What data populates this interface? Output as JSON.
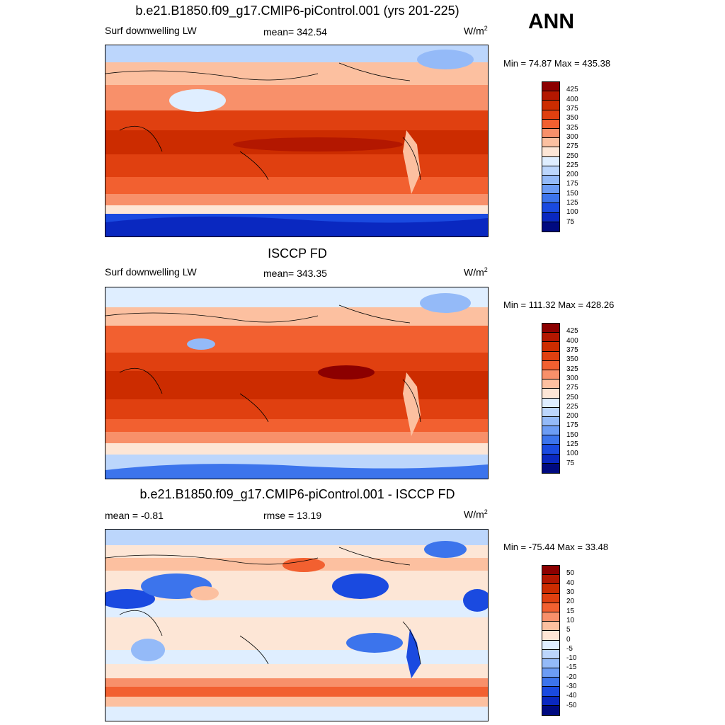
{
  "season": "ANN",
  "panel1": {
    "title": "b.e21.B1850.f09_g17.CMIP6-piControl.001 (yrs 201-225)",
    "left_label": "Surf downwelling LW",
    "center_label": "mean= 342.54",
    "units": "W/m",
    "units_sup": "2",
    "minmax": "Min =  74.87 Max = 435.38"
  },
  "panel2": {
    "title": "ISCCP FD",
    "left_label": "Surf downwelling LW",
    "center_label": "mean= 343.35",
    "units": "W/m",
    "units_sup": "2",
    "minmax": "Min = 111.32 Max = 428.26"
  },
  "panel3": {
    "title": "b.e21.B1850.f09_g17.CMIP6-piControl.001 - ISCCP FD",
    "left_label": "mean =  -0.81",
    "center_label": "rmse =  13.19",
    "units": "W/m",
    "units_sup": "2",
    "minmax": "Min = -75.44 Max =  33.48"
  },
  "colorbar_abs": {
    "levels": [
      "425",
      "400",
      "375",
      "350",
      "325",
      "300",
      "275",
      "250",
      "225",
      "200",
      "175",
      "150",
      "125",
      "100",
      "75"
    ],
    "colors": [
      "#8c0000",
      "#b31700",
      "#cc2c00",
      "#e04010",
      "#f26030",
      "#f8906a",
      "#fcc0a0",
      "#fde6d6",
      "#dfeeff",
      "#bcd6fc",
      "#94baf8",
      "#6c9cf4",
      "#3c74ec",
      "#1a4ae0",
      "#0a28c0",
      "#000a80"
    ]
  },
  "colorbar_diff": {
    "levels": [
      "50",
      "40",
      "30",
      "20",
      "15",
      "10",
      "5",
      "0",
      "-5",
      "-10",
      "-15",
      "-20",
      "-30",
      "-40",
      "-50"
    ],
    "colors": [
      "#8c0000",
      "#b31700",
      "#cc2c00",
      "#e04010",
      "#f26030",
      "#f8906a",
      "#fcc0a0",
      "#fde6d6",
      "#dfeeff",
      "#bcd6fc",
      "#94baf8",
      "#6c9cf4",
      "#3c74ec",
      "#1a4ae0",
      "#0a28c0",
      "#000a80"
    ]
  }
}
